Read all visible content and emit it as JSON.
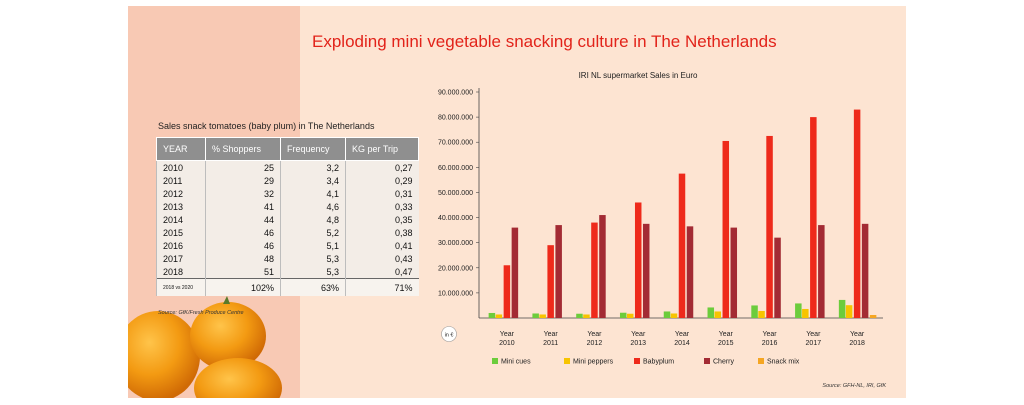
{
  "title": "Exploding mini vegetable snacking culture in The Netherlands",
  "table": {
    "title": "Sales snack tomatoes (baby plum) in The Netherlands",
    "headers": [
      "YEAR",
      "% Shoppers",
      "Frequency",
      "KG per Trip"
    ],
    "rows": [
      [
        "2010",
        "25",
        "3,2",
        "0,27"
      ],
      [
        "2011",
        "29",
        "3,4",
        "0,29"
      ],
      [
        "2012",
        "32",
        "4,1",
        "0,31"
      ],
      [
        "2013",
        "41",
        "4,6",
        "0,33"
      ],
      [
        "2014",
        "44",
        "4,8",
        "0,35"
      ],
      [
        "2015",
        "46",
        "5,2",
        "0,38"
      ],
      [
        "2016",
        "46",
        "5,1",
        "0,41"
      ],
      [
        "2017",
        "48",
        "5,3",
        "0,43"
      ],
      [
        "2018",
        "51",
        "5,3",
        "0,47"
      ]
    ],
    "total": [
      "2018 vs 2020",
      "102%",
      "63%",
      "71%"
    ],
    "source": "Source: GfK/Fresh Produce Centre"
  },
  "chart_data": {
    "type": "bar",
    "title": "IRI NL supermarket Sales in Euro",
    "unit_label": "in €",
    "categories": [
      "Year 2010",
      "Year 2011",
      "Year 2012",
      "Year 2013",
      "Year 2014",
      "Year 2015",
      "Year 2016",
      "Year 2017",
      "Year 2018"
    ],
    "ylim": [
      0,
      90000000
    ],
    "yticks": [
      "10.000.000",
      "20.000.000",
      "30.000.000",
      "40.000.000",
      "50.000.000",
      "60.000.000",
      "70.000.000",
      "80.000.000",
      "90.000.000"
    ],
    "grid": false,
    "legend": "bottom",
    "series": [
      {
        "name": "Mini cues",
        "color": "#6ccc3c",
        "values": [
          2000000,
          1800000,
          1700000,
          2100000,
          2600000,
          4200000,
          5000000,
          5800000,
          7200000
        ]
      },
      {
        "name": "Mini peppers",
        "color": "#f7c400",
        "values": [
          1400000,
          1400000,
          1400000,
          1700000,
          1800000,
          2600000,
          2800000,
          3600000,
          5100000
        ]
      },
      {
        "name": "Babyplum",
        "color": "#ee2a1b",
        "values": [
          21000000,
          29000000,
          38000000,
          46000000,
          57500000,
          70500000,
          72500000,
          80000000,
          83000000
        ]
      },
      {
        "name": "Cherry",
        "color": "#a32b34",
        "values": [
          36000000,
          37000000,
          41000000,
          37500000,
          36500000,
          36000000,
          32000000,
          37000000,
          37500000
        ]
      },
      {
        "name": "Snack mix",
        "color": "#f5a623",
        "values": [
          0,
          0,
          0,
          0,
          0,
          0,
          0,
          0,
          1200000
        ]
      }
    ]
  },
  "source": "Source: GFH-NL, IRI, GfK"
}
